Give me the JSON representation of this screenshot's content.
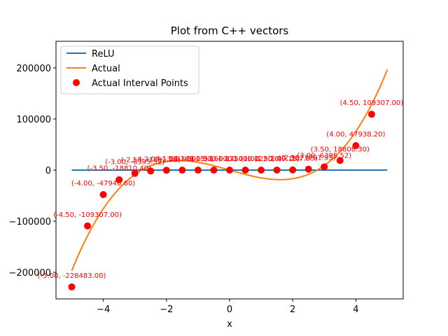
{
  "chart_data": {
    "type": "line",
    "title": "Plot from C++ vectors",
    "xlabel": "x",
    "ylabel": "",
    "xlim": [
      -5.5,
      5.5
    ],
    "ylim": [
      -252000,
      252000
    ],
    "xticks": [
      -4,
      -2,
      0,
      2,
      4
    ],
    "xtick_labels": [
      "−4",
      "−2",
      "0",
      "2",
      "4"
    ],
    "yticks": [
      -200000,
      -100000,
      0,
      100000,
      200000
    ],
    "ytick_labels": [
      "−200000",
      "−100000",
      "0",
      "100000",
      "200000"
    ],
    "legend_position": "upper-left",
    "colors": {
      "relu": "#1f77b4",
      "actual": "#ff7f0e",
      "points": "#ff0000"
    },
    "series": [
      {
        "name": "ReLU",
        "kind": "line",
        "x": [
          -5,
          5
        ],
        "y": [
          0,
          0
        ]
      },
      {
        "name": "Actual",
        "kind": "line",
        "function": "cubic-fit",
        "x": [
          -5.0,
          -4.5,
          -4.0,
          -3.5,
          -3.0,
          -2.5,
          -2.0,
          -1.5,
          -1.0,
          -0.5,
          0.0,
          0.5,
          1.0,
          1.5,
          2.0,
          2.5,
          3.0,
          3.5,
          4.0,
          4.5,
          5.0
        ],
        "y": [
          -228483,
          -109307,
          -47940.6,
          -18810.4,
          -6395.52,
          -1791.95,
          -367.95,
          -49.15,
          -3.16,
          -0.12,
          0.0,
          0.12,
          3.16,
          49.15,
          367.95,
          1791.95,
          6395.52,
          18808.3,
          47938.2,
          109307,
          228483
        ]
      },
      {
        "name": "Actual Interval Points",
        "kind": "scatter",
        "x": [
          -5.0,
          -4.5,
          -4.0,
          -3.5,
          -3.0,
          -2.5,
          -2.0,
          -1.5,
          -1.0,
          -0.5,
          0.0,
          0.5,
          1.0,
          1.5,
          2.0,
          2.5,
          3.0,
          3.5,
          4.0,
          4.5
        ],
        "y": [
          -228483,
          -109307,
          -47940.6,
          -18810.4,
          -6395.52,
          -1791.95,
          -367.95,
          -49.15,
          -3.16,
          -0.12,
          0.0,
          0.12,
          3.16,
          49.15,
          367.95,
          1791.95,
          6395.52,
          18808.3,
          47938.2,
          109307
        ]
      }
    ],
    "annotations": [
      {
        "x": -5.0,
        "y": -228483,
        "text": "(-5.00, -228483.00)"
      },
      {
        "x": -4.5,
        "y": -109307,
        "text": "(-4.50, -109307.00)"
      },
      {
        "x": -4.0,
        "y": -47940.6,
        "text": "(-4.00, -47940.60)"
      },
      {
        "x": -3.5,
        "y": -18810.4,
        "text": "(-3.50, -18810.40)"
      },
      {
        "x": -3.0,
        "y": -6395.52,
        "text": "(-3.00, -6395.52)"
      },
      {
        "x": -2.5,
        "y": -1791.95,
        "text": "(-2.50, -1791.95)"
      },
      {
        "x": -2.0,
        "y": -367.95,
        "text": "(-2.00, -367.95)"
      },
      {
        "x": -1.5,
        "y": -49.15,
        "text": "(-1.50, -49.15)"
      },
      {
        "x": -1.0,
        "y": -3.16,
        "text": "(-1.00, -3.16)"
      },
      {
        "x": -0.5,
        "y": -0.12,
        "text": "(-0.50, -0.12)"
      },
      {
        "x": 0.0,
        "y": 0.0,
        "text": "(0.00, 0.00)"
      },
      {
        "x": 0.5,
        "y": 0.12,
        "text": "(0.50, 0.12)"
      },
      {
        "x": 1.0,
        "y": 3.16,
        "text": "(1.00, 3.16)"
      },
      {
        "x": 1.5,
        "y": 49.15,
        "text": "(1.50, 49.15)"
      },
      {
        "x": 2.0,
        "y": 367.95,
        "text": "(2.00, 367.95)"
      },
      {
        "x": 2.5,
        "y": 1791.95,
        "text": "(2.50, 1791.95)"
      },
      {
        "x": 3.0,
        "y": 6395.52,
        "text": "(3.00, 6395.52)"
      },
      {
        "x": 3.5,
        "y": 18808.3,
        "text": "(3.50, 18808.30)"
      },
      {
        "x": 4.0,
        "y": 47938.2,
        "text": "(4.00, 47938.20)"
      },
      {
        "x": 4.5,
        "y": 109307,
        "text": "(4.50, 109307.00)"
      }
    ]
  }
}
